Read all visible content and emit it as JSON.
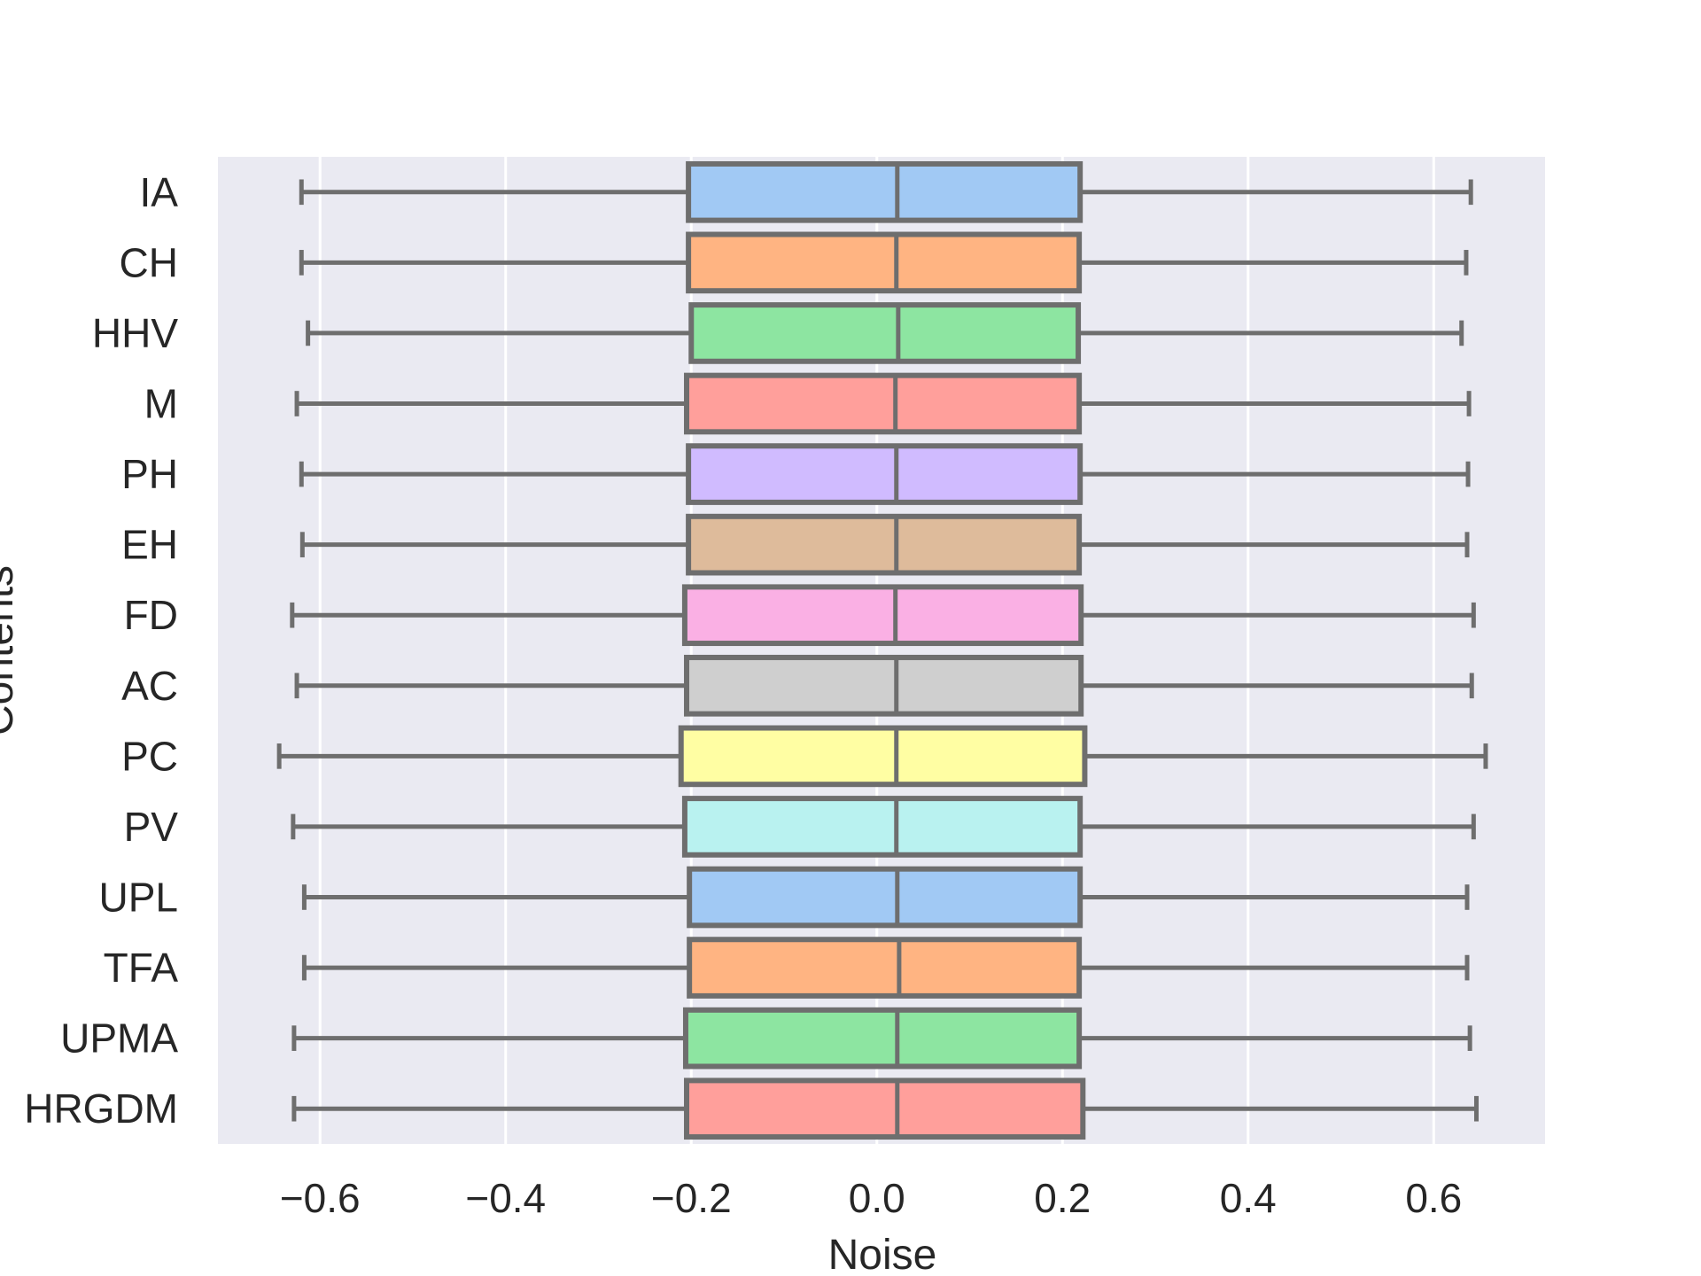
{
  "chart_data": {
    "type": "boxplot",
    "orientation": "horizontal",
    "title": "",
    "xlabel": "Noise",
    "ylabel": "Contents",
    "xlim": [
      -0.71,
      0.72
    ],
    "xticks": [
      -0.6,
      -0.4,
      -0.2,
      0.0,
      0.2,
      0.4,
      0.6
    ],
    "xtick_labels": [
      "−0.6",
      "−0.4",
      "−0.2",
      "0.0",
      "0.2",
      "0.4",
      "0.6"
    ],
    "grid": true,
    "background": "#eaeaf2",
    "box_edge_color": "#6e6e6e",
    "categories": [
      "IA",
      "CH",
      "HHV",
      "M",
      "PH",
      "EH",
      "FD",
      "AC",
      "PC",
      "PV",
      "UPL",
      "TFA",
      "UPMA",
      "HRGDM"
    ],
    "colors": [
      "#a1c9f4",
      "#ffb482",
      "#8de5a1",
      "#ff9f9b",
      "#d0bbff",
      "#debb9b",
      "#fab0e4",
      "#cfcfcf",
      "#fffea3",
      "#b9f2f0",
      "#a1c9f4",
      "#ffb482",
      "#8de5a1",
      "#ff9f9b"
    ],
    "boxes": [
      {
        "label": "IA",
        "min": -0.62,
        "q1": -0.203,
        "median": 0.022,
        "q3": 0.219,
        "max": 0.64
      },
      {
        "label": "CH",
        "min": -0.62,
        "q1": -0.203,
        "median": 0.021,
        "q3": 0.218,
        "max": 0.635
      },
      {
        "label": "HHV",
        "min": -0.613,
        "q1": -0.2,
        "median": 0.023,
        "q3": 0.217,
        "max": 0.63
      },
      {
        "label": "M",
        "min": -0.625,
        "q1": -0.205,
        "median": 0.02,
        "q3": 0.218,
        "max": 0.638
      },
      {
        "label": "PH",
        "min": -0.62,
        "q1": -0.203,
        "median": 0.021,
        "q3": 0.219,
        "max": 0.637
      },
      {
        "label": "EH",
        "min": -0.619,
        "q1": -0.203,
        "median": 0.021,
        "q3": 0.218,
        "max": 0.636
      },
      {
        "label": "FD",
        "min": -0.63,
        "q1": -0.207,
        "median": 0.02,
        "q3": 0.22,
        "max": 0.643
      },
      {
        "label": "AC",
        "min": -0.625,
        "q1": -0.205,
        "median": 0.021,
        "q3": 0.22,
        "max": 0.641
      },
      {
        "label": "PC",
        "min": -0.644,
        "q1": -0.211,
        "median": 0.021,
        "q3": 0.224,
        "max": 0.656
      },
      {
        "label": "PV",
        "min": -0.629,
        "q1": -0.207,
        "median": 0.021,
        "q3": 0.219,
        "max": 0.643
      },
      {
        "label": "UPL",
        "min": -0.617,
        "q1": -0.202,
        "median": 0.022,
        "q3": 0.219,
        "max": 0.636
      },
      {
        "label": "TFA",
        "min": -0.617,
        "q1": -0.202,
        "median": 0.024,
        "q3": 0.218,
        "max": 0.636
      },
      {
        "label": "UPMA",
        "min": -0.628,
        "q1": -0.206,
        "median": 0.022,
        "q3": 0.218,
        "max": 0.639
      },
      {
        "label": "HRGDM",
        "min": -0.628,
        "q1": -0.205,
        "median": 0.022,
        "q3": 0.222,
        "max": 0.646
      }
    ]
  }
}
